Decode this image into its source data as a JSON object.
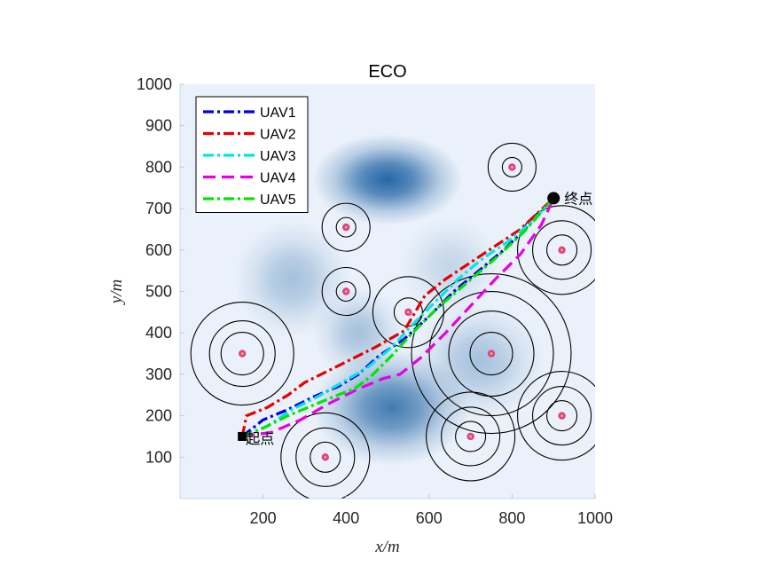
{
  "chart_data": {
    "type": "line",
    "title": "ECO",
    "xlabel": "x/m",
    "ylabel": "y/m",
    "xlim": [
      0,
      1000
    ],
    "ylim": [
      0,
      1000
    ],
    "xticks": [
      200,
      400,
      600,
      800,
      1000
    ],
    "yticks": [
      100,
      200,
      300,
      400,
      500,
      600,
      700,
      800,
      900,
      1000
    ],
    "grid": false,
    "legend_position": "top-left",
    "colors": {
      "background_blob": "#1a5fa0",
      "obstacle_ring": "#000000",
      "obstacle_dot": "#e0408a",
      "obstacle_dot_center": "#f2c23c"
    },
    "terrain_peaks": [
      {
        "x": 500,
        "y": 770,
        "sx": 90,
        "sy": 55,
        "a": 1.0
      },
      {
        "x": 510,
        "y": 220,
        "sx": 95,
        "sy": 70,
        "a": 0.85
      },
      {
        "x": 270,
        "y": 530,
        "sx": 70,
        "sy": 70,
        "a": 0.35
      },
      {
        "x": 430,
        "y": 400,
        "sx": 55,
        "sy": 55,
        "a": 0.35
      },
      {
        "x": 720,
        "y": 330,
        "sx": 80,
        "sy": 70,
        "a": 0.35
      },
      {
        "x": 650,
        "y": 560,
        "sx": 60,
        "sy": 60,
        "a": 0.2
      }
    ],
    "obstacles": [
      {
        "x": 150,
        "y": 350,
        "radii": [
          24,
          37,
          58
        ]
      },
      {
        "x": 350,
        "y": 100,
        "radii": [
          17,
          33,
          50
        ]
      },
      {
        "x": 400,
        "y": 655,
        "radii": [
          11,
          27
        ]
      },
      {
        "x": 400,
        "y": 500,
        "radii": [
          11,
          27
        ]
      },
      {
        "x": 550,
        "y": 450,
        "radii": [
          16,
          40
        ]
      },
      {
        "x": 700,
        "y": 150,
        "radii": [
          17,
          33,
          50
        ]
      },
      {
        "x": 750,
        "y": 350,
        "radii": [
          24,
          48,
          70,
          90
        ]
      },
      {
        "x": 800,
        "y": 800,
        "radii": [
          11,
          27
        ]
      },
      {
        "x": 920,
        "y": 600,
        "radii": [
          17,
          33,
          50
        ]
      },
      {
        "x": 920,
        "y": 200,
        "radii": [
          17,
          33,
          50
        ]
      }
    ],
    "start": {
      "x": 150,
      "y": 150,
      "label": "起点"
    },
    "end": {
      "x": 900,
      "y": 725,
      "label": "终点"
    },
    "series": [
      {
        "name": "UAV1",
        "color": "#0000e6",
        "dash": "dashdot",
        "x": [
          150,
          200,
          260,
          320,
          380,
          430,
          480,
          540,
          600,
          660,
          720,
          780,
          840,
          900
        ],
        "y": [
          150,
          190,
          215,
          245,
          270,
          300,
          345,
          385,
          440,
          500,
          550,
          600,
          660,
          725
        ]
      },
      {
        "name": "UAV2",
        "color": "#e60000",
        "dash": "dashdot",
        "x": [
          150,
          160,
          210,
          260,
          300,
          350,
          400,
          470,
          540,
          590,
          640,
          700,
          760,
          820,
          900
        ],
        "y": [
          150,
          200,
          220,
          250,
          280,
          305,
          330,
          365,
          405,
          490,
          530,
          570,
          610,
          650,
          725
        ]
      },
      {
        "name": "UAV3",
        "color": "#00e6e6",
        "dash": "dashdot",
        "x": [
          150,
          210,
          270,
          330,
          390,
          450,
          510,
          560,
          610,
          670,
          730,
          790,
          850,
          900
        ],
        "y": [
          150,
          175,
          215,
          245,
          280,
          315,
          365,
          420,
          470,
          530,
          580,
          620,
          670,
          725
        ]
      },
      {
        "name": "UAV4",
        "color": "#e600e6",
        "dash": "dash",
        "x": [
          150,
          220,
          290,
          360,
          430,
          490,
          530,
          580,
          640,
          700,
          760,
          820,
          870,
          900
        ],
        "y": [
          150,
          160,
          190,
          230,
          265,
          290,
          300,
          340,
          400,
          465,
          530,
          590,
          660,
          725
        ]
      },
      {
        "name": "UAV5",
        "color": "#00e600",
        "dash": "dashdot",
        "x": [
          150,
          200,
          260,
          320,
          380,
          420,
          460,
          510,
          560,
          620,
          690,
          760,
          830,
          900
        ],
        "y": [
          150,
          170,
          200,
          225,
          250,
          265,
          295,
          345,
          400,
          460,
          520,
          580,
          645,
          725
        ]
      }
    ]
  }
}
